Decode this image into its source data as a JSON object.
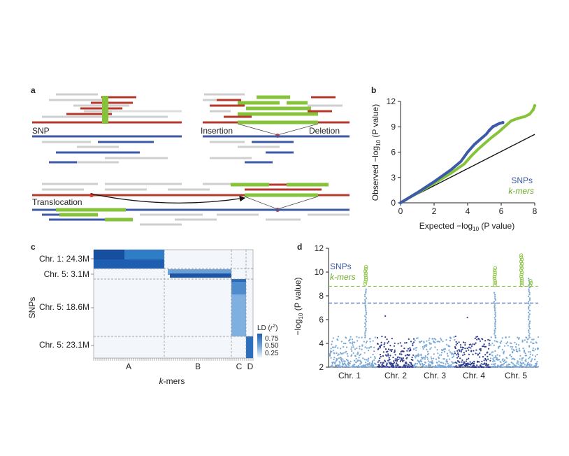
{
  "panel_labels": {
    "a": "a",
    "b": "b",
    "c": "c",
    "d": "d"
  },
  "panel_a": {
    "labels": {
      "snp": "SNP",
      "insertion": "Insertion",
      "deletion": "Deletion",
      "translocation": "Translocation"
    }
  },
  "colors": {
    "snp_blue": "#3d5aa8",
    "kmer_green": "#86c33a",
    "ref_red": "#b8372b",
    "read_grey": "#cfcfcf",
    "grey_light": "#dedede",
    "line_black": "#111111",
    "manhattan_light": "#79a7d6",
    "manhattan_dark": "#2e3d8f"
  },
  "panel_b": {
    "ylabel": "Observed −log10 (P value)",
    "ylabel_parts": {
      "pre": "Observed −log",
      "sub": "10",
      "post": " (P value)"
    },
    "xlabel_parts": {
      "pre": "Expected −log",
      "sub": "10",
      "post": " (P value)"
    },
    "legend_snps": "SNPs",
    "legend_kmers": "k-mers"
  },
  "panel_c": {
    "row_labels": [
      "Chr. 1: 24.3M",
      "Chr. 5: 3.1M",
      "Chr. 5: 18.6M",
      "Chr. 5: 23.1M"
    ],
    "col_labels": [
      "A",
      "B",
      "C",
      "D"
    ],
    "ylabel": "SNPs",
    "xlabel": "k-mers",
    "colorbar_title": "LD (r²)",
    "colorbar_ticks": [
      "0.75",
      "0.50",
      "0.25"
    ]
  },
  "panel_d": {
    "legend_snps": "SNPs",
    "legend_kmers": "k-mers",
    "ylabel": "−log10 (P value)",
    "ylabel_parts": {
      "pre": "−log",
      "sub": "10",
      "post": " (P value)"
    },
    "chromosomes": [
      "Chr. 1",
      "Chr. 2",
      "Chr. 3",
      "Chr. 4",
      "Chr. 5"
    ]
  },
  "chart_data": [
    {
      "type": "scatter",
      "title": "",
      "xlabel": "Expected −log10 (P value)",
      "ylabel": "Observed −log10 (P value)",
      "xlim": [
        0,
        8
      ],
      "ylim": [
        0,
        12
      ],
      "xticks": [
        0,
        2,
        4,
        6,
        8
      ],
      "yticks": [
        0,
        3,
        6,
        9,
        12
      ],
      "grid": false,
      "legend_position": "bottom-right",
      "series": [
        {
          "name": "SNPs",
          "color": "#3d5aa8",
          "points": [
            [
              0,
              0
            ],
            [
              1,
              1.2
            ],
            [
              2,
              2.5
            ],
            [
              3,
              3.9
            ],
            [
              3.6,
              4.9
            ],
            [
              4,
              6.0
            ],
            [
              4.4,
              6.9
            ],
            [
              4.8,
              7.6
            ],
            [
              5.1,
              8.1
            ],
            [
              5.3,
              8.6
            ],
            [
              5.5,
              9.0
            ],
            [
              5.7,
              9.2
            ],
            [
              5.9,
              9.4
            ],
            [
              6.1,
              9.5
            ]
          ]
        },
        {
          "name": "k-mers",
          "color": "#86c33a",
          "points": [
            [
              0,
              0
            ],
            [
              1,
              1.15
            ],
            [
              2,
              2.3
            ],
            [
              3,
              3.5
            ],
            [
              3.8,
              4.6
            ],
            [
              4.2,
              5.5
            ],
            [
              4.6,
              6.3
            ],
            [
              5,
              7.0
            ],
            [
              5.4,
              7.7
            ],
            [
              5.8,
              8.3
            ],
            [
              6.2,
              9.0
            ],
            [
              6.6,
              9.7
            ],
            [
              7,
              10.0
            ],
            [
              7.4,
              10.2
            ],
            [
              7.7,
              10.5
            ],
            [
              7.9,
              11.0
            ],
            [
              8.0,
              11.5
            ]
          ]
        },
        {
          "name": "",
          "color": "#111111",
          "points": [
            [
              0,
              0
            ],
            [
              8,
              8.1
            ]
          ]
        }
      ]
    },
    {
      "type": "heatmap",
      "title": "",
      "xlabel": "k-mers",
      "ylabel": "SNPs",
      "row_groups": [
        "Chr. 1: 24.3M",
        "Chr. 5: 3.1M",
        "Chr. 5: 18.6M",
        "Chr. 5: 23.1M"
      ],
      "col_groups": [
        "A",
        "B",
        "C",
        "D"
      ],
      "colorbar": {
        "label": "LD (r²)",
        "ticks": [
          0.25,
          0.5,
          0.75
        ]
      },
      "values": [
        [
          0.85,
          0.05,
          0.05,
          0.05
        ],
        [
          0.05,
          0.95,
          0.1,
          0.05
        ],
        [
          0.05,
          0.05,
          0.55,
          0.05
        ],
        [
          0.05,
          0.05,
          0.1,
          0.8
        ]
      ]
    },
    {
      "type": "scatter",
      "title": "",
      "xlabel": "",
      "ylabel": "−log10 (P value)",
      "ylim": [
        2,
        12
      ],
      "yticks": [
        2,
        4,
        6,
        8,
        10,
        12
      ],
      "categories": [
        "Chr. 1",
        "Chr. 2",
        "Chr. 3",
        "Chr. 4",
        "Chr. 5"
      ],
      "thresholds": [
        {
          "name": "k-mers",
          "value": 8.8,
          "color": "#86c33a"
        },
        {
          "name": "SNPs",
          "value": 7.4,
          "color": "#3d5aa8"
        }
      ],
      "legend_position": "top-left",
      "series": [
        {
          "name": "SNPs",
          "color": "#79a7d6",
          "peaks": [
            {
              "chromosome": "Chr. 1",
              "max": 8.6
            },
            {
              "chromosome": "Chr. 4",
              "max": 8.4
            },
            {
              "chromosome": "Chr. 5",
              "max": 9.5
            }
          ]
        },
        {
          "name": "k-mers",
          "color": "#86c33a",
          "peaks": [
            {
              "chromosome": "Chr. 1",
              "max": 10.5
            },
            {
              "chromosome": "Chr. 4",
              "max": 10.5
            },
            {
              "chromosome": "Chr. 5",
              "max": 11.5
            }
          ]
        }
      ]
    }
  ]
}
